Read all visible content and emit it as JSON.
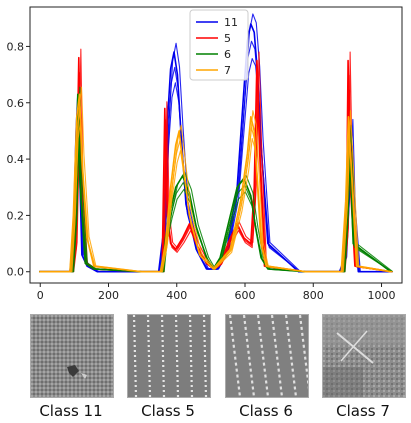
{
  "chart_data": {
    "type": "line",
    "title": "",
    "xlabel": "",
    "ylabel": "",
    "xlim": [
      -30,
      1060
    ],
    "ylim": [
      -0.04,
      0.94
    ],
    "x_ticks": [
      0,
      200,
      400,
      600,
      800,
      1000
    ],
    "y_ticks": [
      0.0,
      0.2,
      0.4,
      0.6,
      0.8
    ],
    "grid": false,
    "legend_position": "top-center",
    "series": [
      {
        "name": "11",
        "color": "#0000ee",
        "x": [
          0,
          90,
          100,
          108,
          113,
          118,
          125,
          140,
          170,
          250,
          350,
          365,
          375,
          385,
          395,
          405,
          415,
          430,
          460,
          490,
          520,
          550,
          580,
          600,
          610,
          620,
          630,
          640,
          650,
          670,
          760,
          880,
          895,
          905,
          913,
          920,
          935,
          1030
        ],
        "values": [
          0.0,
          0.0,
          0.12,
          0.5,
          0.62,
          0.38,
          0.06,
          0.02,
          0.0,
          0.0,
          0.0,
          0.15,
          0.52,
          0.72,
          0.78,
          0.7,
          0.5,
          0.24,
          0.08,
          0.01,
          0.01,
          0.08,
          0.3,
          0.65,
          0.82,
          0.88,
          0.85,
          0.7,
          0.45,
          0.1,
          0.0,
          0.0,
          0.05,
          0.3,
          0.52,
          0.22,
          0.0,
          0.0
        ]
      },
      {
        "name": "5",
        "color": "#ff0000",
        "x": [
          0,
          95,
          105,
          112,
          116,
          122,
          135,
          160,
          300,
          360,
          368,
          375,
          385,
          400,
          420,
          440,
          460,
          490,
          510,
          530,
          560,
          580,
          600,
          620,
          630,
          638,
          645,
          660,
          780,
          890,
          900,
          905,
          912,
          925,
          1030
        ],
        "values": [
          0.0,
          0.0,
          0.1,
          0.48,
          0.76,
          0.3,
          0.03,
          0.01,
          0.0,
          0.0,
          0.58,
          0.2,
          0.1,
          0.08,
          0.12,
          0.17,
          0.1,
          0.03,
          0.01,
          0.03,
          0.12,
          0.17,
          0.12,
          0.1,
          0.3,
          0.75,
          0.45,
          0.02,
          0.0,
          0.0,
          0.15,
          0.75,
          0.3,
          0.02,
          0.0
        ]
      },
      {
        "name": "6",
        "color": "#008000",
        "x": [
          0,
          95,
          105,
          113,
          120,
          135,
          160,
          300,
          360,
          370,
          385,
          400,
          420,
          440,
          460,
          490,
          510,
          530,
          560,
          580,
          600,
          620,
          635,
          650,
          670,
          780,
          890,
          900,
          908,
          920,
          1030
        ],
        "values": [
          0.0,
          0.0,
          0.2,
          0.63,
          0.3,
          0.03,
          0.01,
          0.0,
          0.0,
          0.12,
          0.22,
          0.3,
          0.34,
          0.28,
          0.16,
          0.05,
          0.01,
          0.05,
          0.2,
          0.3,
          0.33,
          0.27,
          0.15,
          0.05,
          0.01,
          0.0,
          0.0,
          0.2,
          0.5,
          0.1,
          0.0
        ]
      },
      {
        "name": "7",
        "color": "#ffa500",
        "x": [
          0,
          90,
          100,
          110,
          118,
          125,
          140,
          160,
          300,
          355,
          370,
          385,
          400,
          410,
          420,
          440,
          470,
          510,
          560,
          590,
          610,
          620,
          630,
          640,
          650,
          665,
          780,
          885,
          898,
          906,
          915,
          930,
          1030
        ],
        "values": [
          0.0,
          0.0,
          0.2,
          0.55,
          0.63,
          0.4,
          0.12,
          0.02,
          0.0,
          0.0,
          0.1,
          0.3,
          0.45,
          0.5,
          0.4,
          0.2,
          0.06,
          0.01,
          0.08,
          0.25,
          0.42,
          0.55,
          0.5,
          0.3,
          0.1,
          0.02,
          0.0,
          0.0,
          0.25,
          0.55,
          0.35,
          0.02,
          0.0
        ]
      }
    ]
  },
  "images": [
    {
      "caption": "Class 11",
      "pattern": "dense-noise-with-defect"
    },
    {
      "caption": "Class 5",
      "pattern": "vertical-dotted-stripes"
    },
    {
      "caption": "Class 6",
      "pattern": "slanted-dotted-stripes"
    },
    {
      "caption": "Class 7",
      "pattern": "patchy-texture-with-cross-scratch"
    }
  ]
}
